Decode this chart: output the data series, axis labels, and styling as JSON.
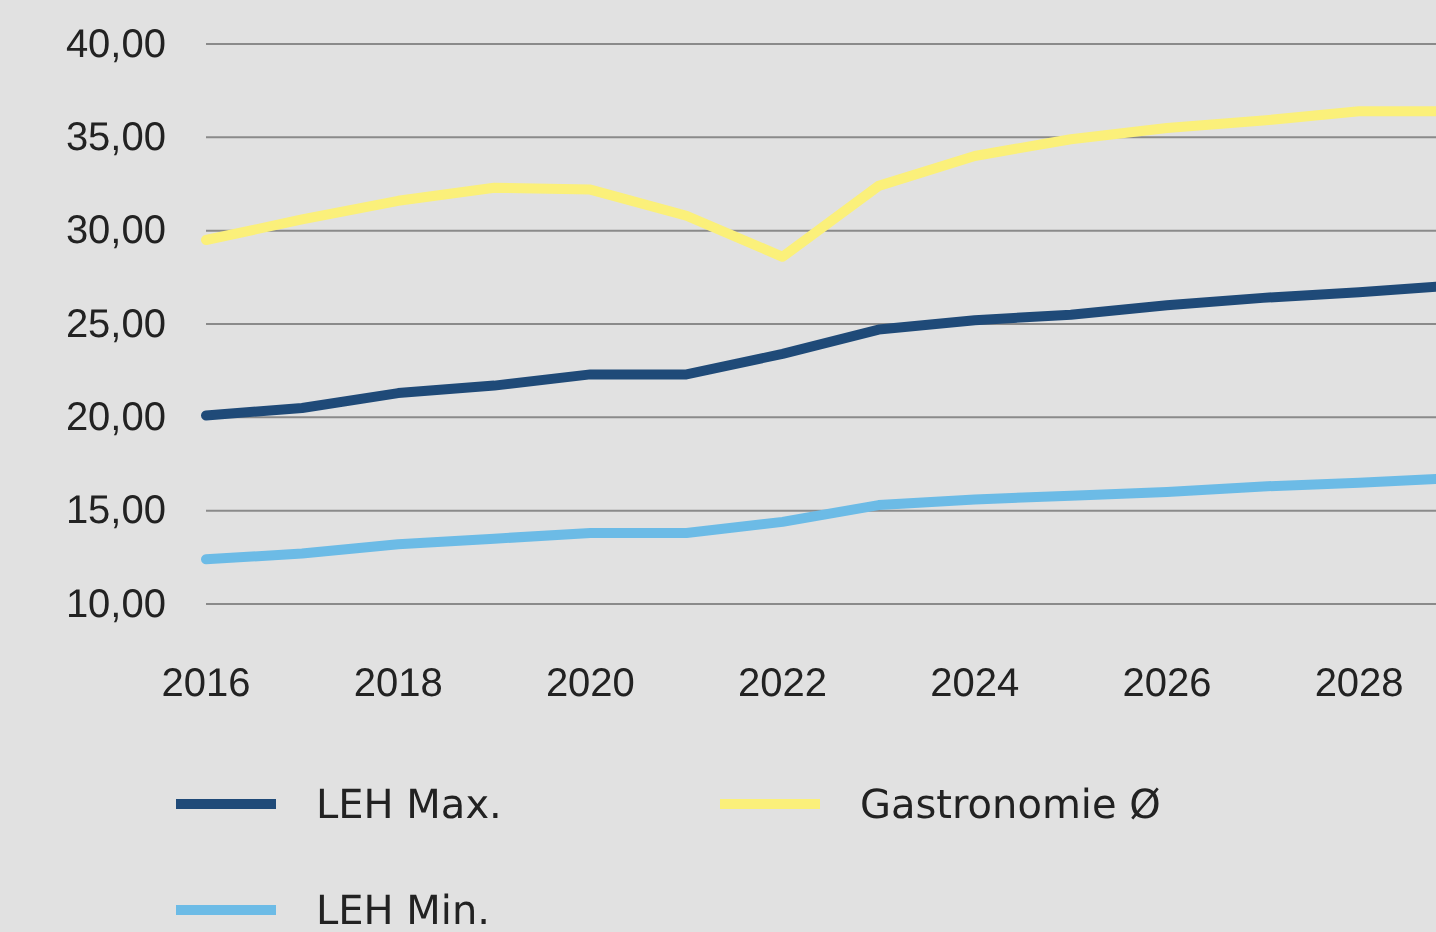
{
  "chart_data": {
    "type": "line",
    "x": [
      2016,
      2017,
      2018,
      2019,
      2020,
      2021,
      2022,
      2023,
      2024,
      2025,
      2026,
      2027,
      2028,
      2028.8
    ],
    "series": [
      {
        "name": "LEH Max.",
        "color": "#1f4a78",
        "values": [
          20.1,
          20.5,
          21.3,
          21.7,
          22.3,
          22.3,
          23.4,
          24.7,
          25.2,
          25.5,
          26,
          26.4,
          26.7,
          27.0
        ]
      },
      {
        "name": "Gastronomie Ø",
        "color": "#fbf07a",
        "values": [
          29.5,
          30.6,
          31.6,
          32.3,
          32.2,
          30.8,
          28.6,
          32.4,
          34,
          34.9,
          35.5,
          35.9,
          36.4,
          36.4
        ]
      },
      {
        "name": "LEH Min.",
        "color": "#6cbbe6",
        "values": [
          12.4,
          12.7,
          13.2,
          13.5,
          13.8,
          13.8,
          14.4,
          15.3,
          15.6,
          15.8,
          16,
          16.3,
          16.5,
          16.7
        ]
      }
    ],
    "xlim": [
      2016,
      2028.8
    ],
    "xticks": [
      2016,
      2018,
      2020,
      2022,
      2024,
      2026,
      2028
    ],
    "ylim": [
      10,
      40
    ],
    "yticks": [
      {
        "value": 10,
        "label": "10,00"
      },
      {
        "value": 15,
        "label": "15,00"
      },
      {
        "value": 20,
        "label": "20,00"
      },
      {
        "value": 25,
        "label": "25,00"
      },
      {
        "value": 30,
        "label": "30,00"
      },
      {
        "value": 35,
        "label": "35,00"
      },
      {
        "value": 40,
        "label": "40,00"
      }
    ],
    "grid": "y",
    "legend": "bottom",
    "marker": "none",
    "line_style": "solid"
  }
}
